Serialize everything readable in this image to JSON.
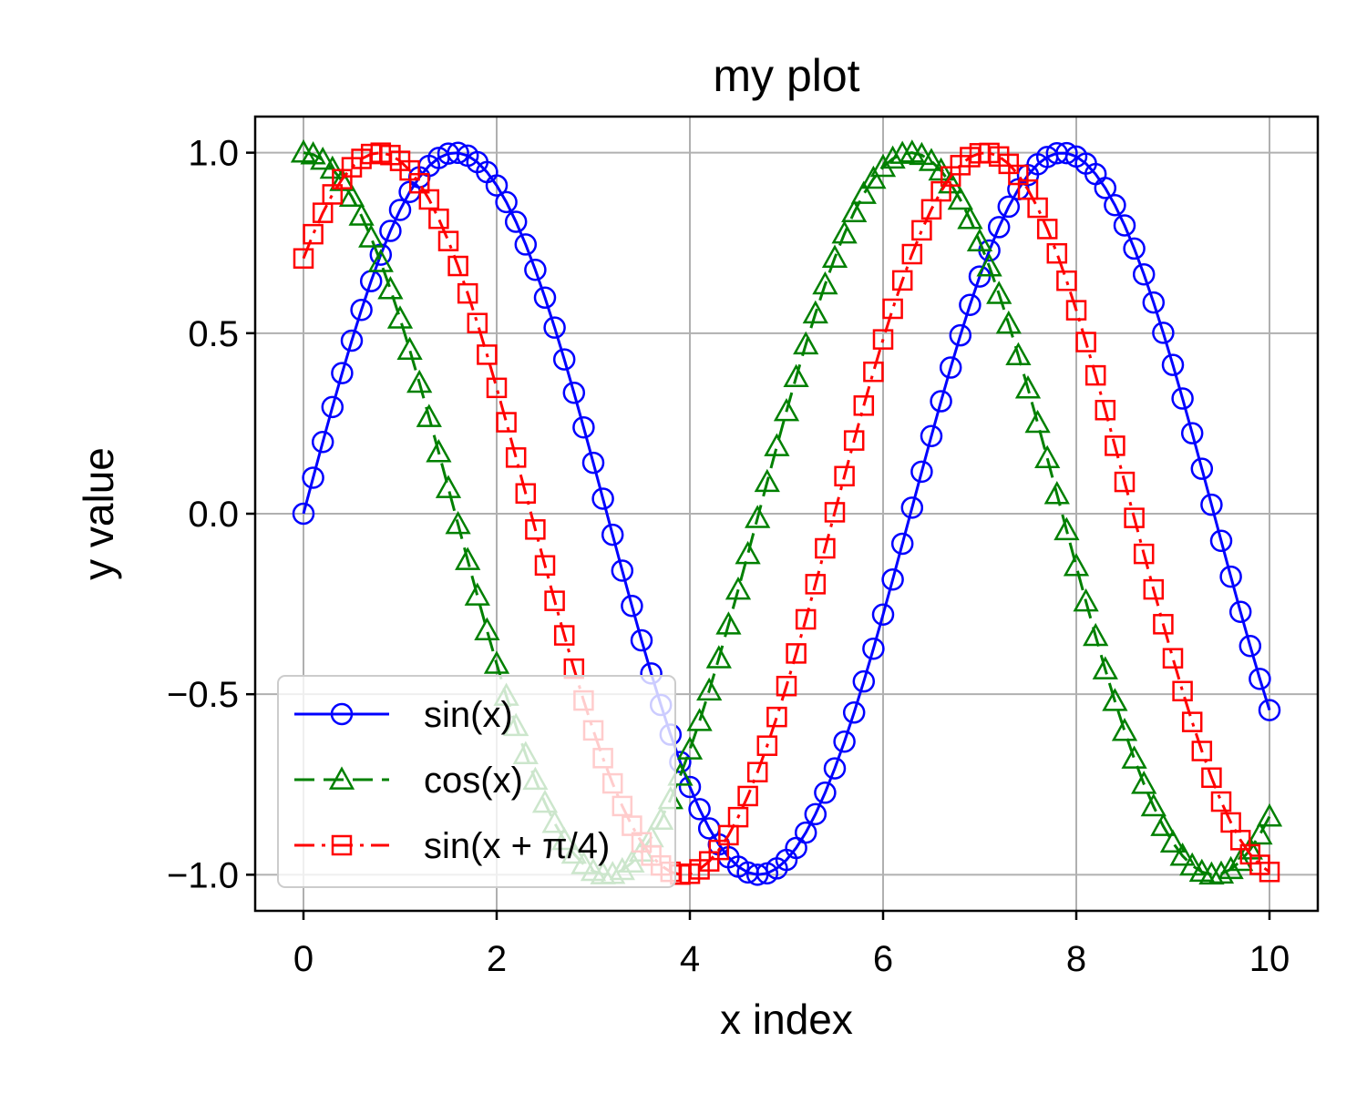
{
  "chart_data": {
    "type": "line",
    "title": "my plot",
    "xlabel": "x index",
    "ylabel": "y value",
    "xlim": [
      -0.5,
      10.5
    ],
    "ylim": [
      -1.1,
      1.1
    ],
    "xticks": [
      0,
      2,
      4,
      6,
      8,
      10
    ],
    "xtick_labels": [
      "0",
      "2",
      "4",
      "6",
      "8",
      "10"
    ],
    "yticks": [
      -1.0,
      -0.5,
      0.0,
      0.5,
      1.0
    ],
    "ytick_labels": [
      "−1.0",
      "−0.5",
      "0.0",
      "0.5",
      "1.0"
    ],
    "grid": true,
    "legend_position": "lower-left",
    "x": [
      0,
      0.1,
      0.2,
      0.3,
      0.4,
      0.5,
      0.6,
      0.7,
      0.8,
      0.9,
      1,
      1.1,
      1.2,
      1.3,
      1.4,
      1.5,
      1.6,
      1.7,
      1.8,
      1.9,
      2,
      2.1,
      2.2,
      2.3,
      2.4,
      2.5,
      2.6,
      2.7,
      2.8,
      2.9,
      3,
      3.1,
      3.2,
      3.3,
      3.4,
      3.5,
      3.6,
      3.7,
      3.8,
      3.9,
      4,
      4.1,
      4.2,
      4.3,
      4.4,
      4.5,
      4.6,
      4.7,
      4.8,
      4.9,
      5,
      5.1,
      5.2,
      5.3,
      5.4,
      5.5,
      5.6,
      5.7,
      5.8,
      5.9,
      6,
      6.1,
      6.2,
      6.3,
      6.4,
      6.5,
      6.6,
      6.7,
      6.8,
      6.9,
      7,
      7.1,
      7.2,
      7.3,
      7.4,
      7.5,
      7.6,
      7.7,
      7.8,
      7.9,
      8,
      8.1,
      8.2,
      8.3,
      8.4,
      8.5,
      8.6,
      8.7,
      8.8,
      8.9,
      9,
      9.1,
      9.2,
      9.3,
      9.4,
      9.5,
      9.6,
      9.7,
      9.8,
      9.9,
      10
    ],
    "series": [
      {
        "name": "sin(x)",
        "color": "#0000ff",
        "linestyle": "solid",
        "marker": "circle",
        "values": [
          0.0,
          0.0998,
          0.1987,
          0.2955,
          0.3894,
          0.4794,
          0.5646,
          0.6442,
          0.7174,
          0.7833,
          0.8415,
          0.8912,
          0.932,
          0.9636,
          0.9854,
          0.9975,
          0.9996,
          0.9917,
          0.9738,
          0.9463,
          0.9093,
          0.8632,
          0.8085,
          0.7457,
          0.6755,
          0.5985,
          0.5155,
          0.4274,
          0.335,
          0.2392,
          0.1411,
          0.0416,
          -0.0584,
          -0.1577,
          -0.2555,
          -0.3508,
          -0.4425,
          -0.5298,
          -0.6119,
          -0.6878,
          -0.7568,
          -0.8183,
          -0.8716,
          -0.9162,
          -0.9516,
          -0.9775,
          -0.9937,
          -0.9999,
          -0.9962,
          -0.9825,
          -0.9589,
          -0.9258,
          -0.8835,
          -0.8323,
          -0.7728,
          -0.7055,
          -0.6313,
          -0.5507,
          -0.4646,
          -0.3739,
          -0.2794,
          -0.1822,
          -0.0831,
          0.0168,
          0.1165,
          0.2151,
          0.3115,
          0.4048,
          0.4941,
          0.5784,
          0.657,
          0.729,
          0.7937,
          0.8504,
          0.8987,
          0.938,
          0.9679,
          0.9882,
          0.9985,
          0.9989,
          0.9894,
          0.9699,
          0.9407,
          0.9022,
          0.8546,
          0.7985,
          0.7344,
          0.663,
          0.585,
          0.501,
          0.4121,
          0.319,
          0.2229,
          0.1245,
          0.0248,
          -0.0752,
          -0.1743,
          -0.2718,
          -0.3665,
          -0.4575,
          -0.544
        ]
      },
      {
        "name": "cos(x)",
        "color": "#008000",
        "linestyle": "dashed",
        "marker": "triangle",
        "values": [
          1.0,
          0.995,
          0.9801,
          0.9553,
          0.9211,
          0.8776,
          0.8253,
          0.7648,
          0.6967,
          0.6216,
          0.5403,
          0.4536,
          0.3624,
          0.2675,
          0.17,
          0.0707,
          -0.0292,
          -0.1288,
          -0.2272,
          -0.3233,
          -0.4161,
          -0.5048,
          -0.5885,
          -0.6663,
          -0.7374,
          -0.8011,
          -0.8569,
          -0.9041,
          -0.9422,
          -0.971,
          -0.99,
          -0.9991,
          -0.9983,
          -0.9875,
          -0.9668,
          -0.9365,
          -0.8968,
          -0.8481,
          -0.791,
          -0.7259,
          -0.6536,
          -0.5748,
          -0.4903,
          -0.4008,
          -0.3073,
          -0.2108,
          -0.1122,
          -0.0124,
          0.0875,
          0.1865,
          0.2837,
          0.378,
          0.4685,
          0.5544,
          0.6347,
          0.7087,
          0.7756,
          0.8347,
          0.8855,
          0.9275,
          0.9602,
          0.9833,
          0.9965,
          0.9999,
          0.9932,
          0.9766,
          0.9502,
          0.9144,
          0.8694,
          0.8157,
          0.7539,
          0.6845,
          0.6084,
          0.5261,
          0.4385,
          0.3466,
          0.2513,
          0.1534,
          0.054,
          -0.046,
          -0.1455,
          -0.2435,
          -0.3392,
          -0.4314,
          -0.5193,
          -0.602,
          -0.6787,
          -0.7486,
          -0.811,
          -0.8654,
          -0.9111,
          -0.9477,
          -0.9748,
          -0.9922,
          -0.9997,
          -0.9972,
          -0.9847,
          -0.9624,
          -0.9304,
          -0.8892,
          -0.8391
        ]
      },
      {
        "name": "sin(x + π/4)",
        "color": "#ff0000",
        "linestyle": "dashdot",
        "marker": "square",
        "values": [
          0.7071,
          0.7742,
          0.8335,
          0.8845,
          0.9266,
          0.9596,
          0.9828,
          0.9963,
          0.9999,
          0.9935,
          0.9773,
          0.9509,
          0.9153,
          0.8705,
          0.8169,
          0.7553,
          0.6862,
          0.6102,
          0.528,
          0.4405,
          0.3486,
          0.2534,
          0.1556,
          0.0562,
          -0.0437,
          -0.1432,
          -0.2413,
          -0.337,
          -0.4293,
          -0.5174,
          -0.6002,
          -0.677,
          -0.747,
          -0.8097,
          -0.8643,
          -0.9102,
          -0.947,
          -0.9743,
          -0.9919,
          -0.9996,
          -0.9973,
          -0.9851,
          -0.963,
          -0.9313,
          -0.8904,
          -0.8405,
          -0.782,
          -0.7158,
          -0.6426,
          -0.563,
          -0.4774,
          -0.387,
          -0.2926,
          -0.1952,
          -0.0959,
          0.004,
          0.104,
          0.2028,
          0.2995,
          0.3931,
          0.4828,
          0.5677,
          0.6462,
          0.719,
          0.785,
          0.8431,
          0.8929,
          0.9343,
          0.9654,
          0.9877,
          0.9983,
          0.9993,
          0.9895,
          0.9691,
          0.9385,
          0.8977,
          0.8476,
          0.7886,
          0.7211,
          0.6453,
          0.5636,
          0.4755,
          0.3832,
          0.287,
          0.1882,
          0.0881,
          -0.0116,
          -0.1113,
          -0.2097,
          -0.3061,
          -0.4004,
          -0.4914,
          -0.5768,
          -0.6573,
          -0.7311,
          -0.7974,
          -0.8552,
          -0.9041,
          -0.9434,
          -0.9726,
          -0.9922
        ]
      }
    ]
  }
}
